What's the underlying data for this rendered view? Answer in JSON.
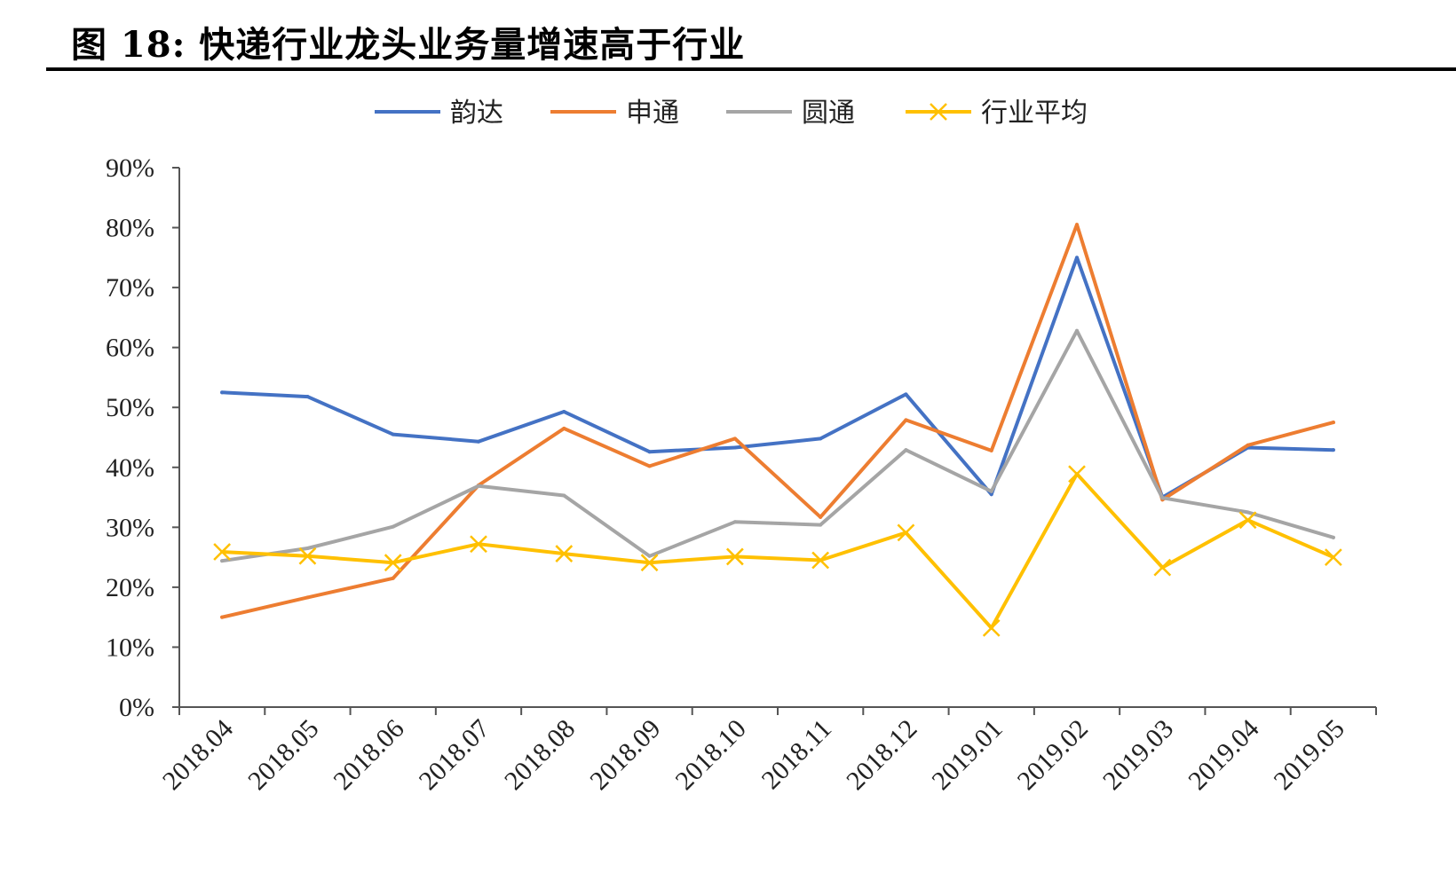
{
  "figure": {
    "title": "图 18: 快递行业龙头业务量增速高于行业"
  },
  "chart_data": {
    "type": "line",
    "categories": [
      "2018.04",
      "2018.05",
      "2018.06",
      "2018.07",
      "2018.08",
      "2018.09",
      "2018.10",
      "2018.11",
      "2018.12",
      "2019.01",
      "2019.02",
      "2019.03",
      "2019.04",
      "2019.05"
    ],
    "ylim": [
      0,
      90
    ],
    "y_ticks": [
      "0%",
      "10%",
      "20%",
      "30%",
      "40%",
      "50%",
      "60%",
      "70%",
      "80%",
      "90%"
    ],
    "y_unit": "%",
    "grid": false,
    "legend_position": "top-center",
    "series": [
      {
        "name": "韵达",
        "color": "#4472C4",
        "marker": "none",
        "values": [
          52.5,
          51.8,
          45.5,
          44.3,
          49.3,
          42.6,
          43.3,
          44.8,
          52.2,
          35.5,
          75.0,
          35.0,
          43.3,
          42.9
        ]
      },
      {
        "name": "申通",
        "color": "#ED7D31",
        "marker": "none",
        "values": [
          15.0,
          18.3,
          21.5,
          37.0,
          46.5,
          40.2,
          44.8,
          31.7,
          47.9,
          42.8,
          80.5,
          34.6,
          43.7,
          47.5
        ]
      },
      {
        "name": "圆通",
        "color": "#A5A5A5",
        "marker": "none",
        "values": [
          24.4,
          26.5,
          30.1,
          36.9,
          35.3,
          25.2,
          30.9,
          30.4,
          42.9,
          36.0,
          62.8,
          34.9,
          32.5,
          28.3
        ]
      },
      {
        "name": "行业平均",
        "color": "#FFC000",
        "marker": "x",
        "values": [
          25.9,
          25.2,
          24.1,
          27.2,
          25.6,
          24.1,
          25.1,
          24.5,
          29.1,
          13.2,
          38.9,
          23.3,
          31.2,
          25.0
        ]
      }
    ]
  }
}
